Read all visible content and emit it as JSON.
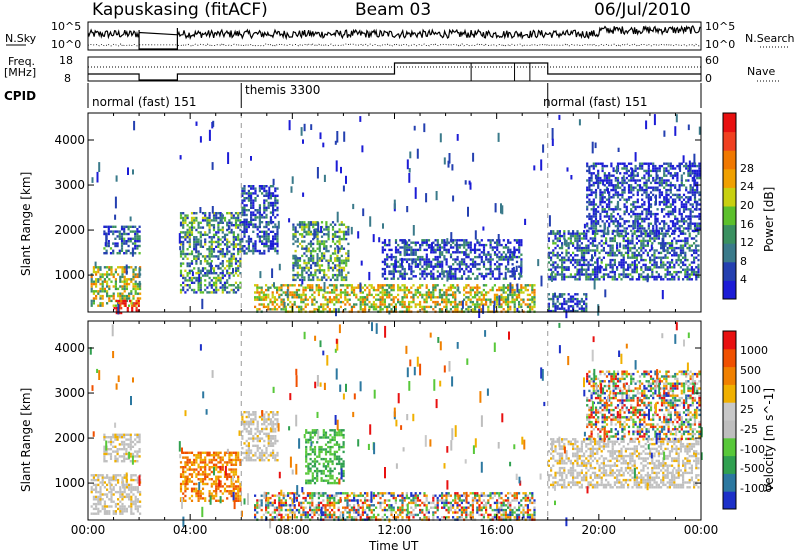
{
  "header": {
    "station": "Kapuskasing (fitACF)",
    "beam": "Beam 03",
    "date": "06/Jul/2010"
  },
  "top_panels": {
    "nsky_label": "N.Sky",
    "nsky_ticks": [
      "10^5",
      "10^0"
    ],
    "nsearch_label": "N.Search",
    "nsearch_ticks": [
      "10^5",
      "10^0"
    ],
    "freq_label": "Freq.",
    "freq_unit": "[MHz]",
    "freq_ticks": [
      "18",
      "8"
    ],
    "nave_label": "Nave",
    "nave_ticks": [
      "60",
      "0"
    ],
    "cpid_label": "CPID",
    "cpid_segments": [
      {
        "label": "normal (fast) 151",
        "start": 0,
        "end": 6
      },
      {
        "label": "themis 3300",
        "start": 6,
        "end": 18
      },
      {
        "label": "normal (fast) 151",
        "start": 18,
        "end": 24
      }
    ]
  },
  "chart_data": [
    {
      "type": "heatmap",
      "title": "",
      "xlabel": "Time UT",
      "ylabel": "Slant Range [km]",
      "x_ticks": [
        "00:00",
        "04:00",
        "08:00",
        "12:00",
        "16:00",
        "20:00",
        "00:00"
      ],
      "xlim_hours": [
        0,
        24
      ],
      "ylim_km": [
        180,
        4600
      ],
      "y_ticks": [
        1000,
        2000,
        3000,
        4000
      ],
      "colorbar": {
        "label": "Power [dB]",
        "ticks": [
          4,
          8,
          12,
          16,
          20,
          24,
          28
        ],
        "colors": [
          "#1c1cd6",
          "#2440b0",
          "#3a7a8a",
          "#3a9060",
          "#5cc02c",
          "#c8d010",
          "#f0a000",
          "#f07800",
          "#f04020",
          "#e81010"
        ]
      },
      "data_gap_hours": [
        2.0,
        3.5
      ],
      "echo_regions": [
        {
          "t0": 0.1,
          "t1": 2.0,
          "r0": 300,
          "r1": 1200,
          "level": 0.5
        },
        {
          "t0": 0.6,
          "t1": 2.0,
          "r0": 1500,
          "r1": 2100,
          "level": 0.2
        },
        {
          "t0": 1.0,
          "t1": 2.0,
          "r0": 180,
          "r1": 450,
          "level": 0.95
        },
        {
          "t0": 3.6,
          "t1": 6.0,
          "r0": 600,
          "r1": 2400,
          "level": 0.3
        },
        {
          "t0": 6.0,
          "t1": 7.4,
          "r0": 1500,
          "r1": 3000,
          "level": 0.15
        },
        {
          "t0": 6.5,
          "t1": 17.5,
          "r0": 180,
          "r1": 800,
          "level": 0.55
        },
        {
          "t0": 8.0,
          "t1": 10.2,
          "r0": 900,
          "r1": 2200,
          "level": 0.35
        },
        {
          "t0": 11.5,
          "t1": 17.0,
          "r0": 900,
          "r1": 1800,
          "level": 0.15
        },
        {
          "t0": 18.0,
          "t1": 23.9,
          "r0": 900,
          "r1": 2000,
          "level": 0.2
        },
        {
          "t0": 18.0,
          "t1": 19.5,
          "r0": 180,
          "r1": 600,
          "level": 0.15
        },
        {
          "t0": 19.5,
          "t1": 23.9,
          "r0": 2000,
          "r1": 3500,
          "level": 0.1
        }
      ]
    },
    {
      "type": "heatmap",
      "title": "",
      "xlabel": "Time UT",
      "ylabel": "Slant Range [km]",
      "x_ticks": [
        "00:00",
        "04:00",
        "08:00",
        "12:00",
        "16:00",
        "20:00",
        "00:00"
      ],
      "xlim_hours": [
        0,
        24
      ],
      "ylim_km": [
        180,
        4600
      ],
      "y_ticks": [
        1000,
        2000,
        3000,
        4000
      ],
      "colorbar": {
        "label": "Velocity [m s^-1]",
        "tick_labels": [
          "1000",
          "500",
          "100",
          "25",
          "-25",
          "-100",
          "-500",
          "-1000"
        ],
        "colors": [
          "#1c30c8",
          "#2c78a0",
          "#30a050",
          "#58c83a",
          "#bebebe",
          "#c8c8c8",
          "#f0b000",
          "#f08000",
          "#f05000",
          "#e81010"
        ]
      },
      "data_gap_hours": [
        2.0,
        3.5
      ],
      "echo_regions": [
        {
          "t0": 0.1,
          "t1": 2.0,
          "r0": 300,
          "r1": 1200,
          "vel": "ground"
        },
        {
          "t0": 0.6,
          "t1": 2.0,
          "r0": 1500,
          "r1": 2100,
          "vel": "ground"
        },
        {
          "t0": 3.6,
          "t1": 6.0,
          "r0": 600,
          "r1": 1700,
          "vel": "away"
        },
        {
          "t0": 6.0,
          "t1": 7.4,
          "r0": 1500,
          "r1": 2600,
          "vel": "ground"
        },
        {
          "t0": 8.5,
          "t1": 10.0,
          "r0": 1000,
          "r1": 2200,
          "vel": "toward"
        },
        {
          "t0": 6.5,
          "t1": 17.5,
          "r0": 180,
          "r1": 800,
          "vel": "mixed"
        },
        {
          "t0": 18.0,
          "t1": 23.9,
          "r0": 900,
          "r1": 2000,
          "vel": "ground"
        },
        {
          "t0": 19.5,
          "t1": 23.9,
          "r0": 2000,
          "r1": 3500,
          "vel": "mixed"
        }
      ]
    }
  ]
}
